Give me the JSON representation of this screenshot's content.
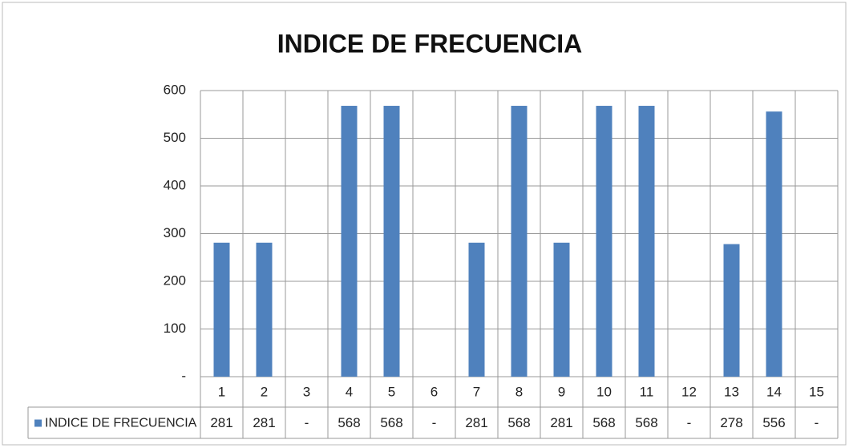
{
  "chart_data": {
    "type": "bar",
    "title": "INDICE DE FRECUENCIA",
    "categories": [
      "1",
      "2",
      "3",
      "4",
      "5",
      "6",
      "7",
      "8",
      "9",
      "10",
      "11",
      "12",
      "13",
      "14",
      "15"
    ],
    "series": [
      {
        "name": "INDICE DE FRECUENCIA",
        "color": "#4f81bd",
        "values": [
          281,
          281,
          0,
          568,
          568,
          0,
          281,
          568,
          281,
          568,
          568,
          0,
          278,
          556,
          0
        ],
        "value_labels": [
          "281",
          "281",
          "-",
          "568",
          "568",
          "-",
          "281",
          "568",
          "281",
          "568",
          "568",
          "-",
          "278",
          "556",
          "-"
        ]
      }
    ],
    "ylim": [
      0,
      600
    ],
    "yticks": [
      {
        "value": 0,
        "label": "-"
      },
      100,
      200,
      300,
      400,
      500,
      600
    ],
    "grid": true
  }
}
